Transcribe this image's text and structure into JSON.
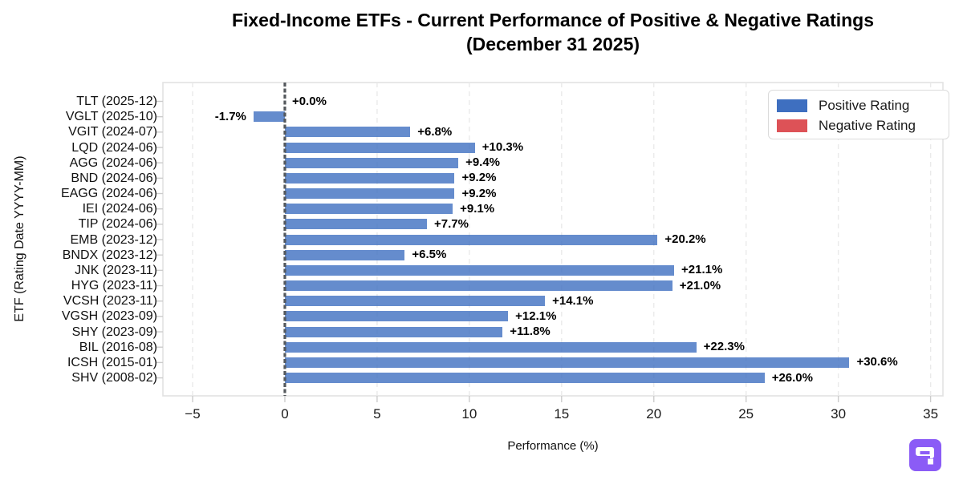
{
  "title": {
    "line1": "Fixed-Income ETFs - Current Performance of Positive & Negative Ratings",
    "line2": "(December 31 2025)"
  },
  "chart_data": {
    "type": "bar",
    "orientation": "horizontal",
    "title": "Fixed-Income ETFs - Current Performance of Positive & Negative Ratings (December 31 2025)",
    "xlabel": "Performance (%)",
    "ylabel": "ETF (Rating Date YYYY-MM)",
    "xlim": [
      -6.61,
      35.67
    ],
    "xticks": [
      -5,
      0,
      5,
      10,
      15,
      20,
      25,
      30,
      35
    ],
    "xtick_labels": [
      "−5",
      "0",
      "5",
      "10",
      "15",
      "20",
      "25",
      "30",
      "35"
    ],
    "grid": "vertical-dashed",
    "zero_line": true,
    "legend": {
      "position": "upper-right",
      "entries": [
        {
          "label": "Positive Rating",
          "color": "#3E6FC0"
        },
        {
          "label": "Negative Rating",
          "color": "#DD5257"
        }
      ]
    },
    "bar_alpha": 0.8,
    "rows": [
      {
        "label": "TLT (2025-12)",
        "value": 0.0,
        "value_label": "+0.0%",
        "rating": "positive"
      },
      {
        "label": "VGLT (2025-10)",
        "value": -1.7,
        "value_label": "-1.7%",
        "rating": "positive"
      },
      {
        "label": "VGIT (2024-07)",
        "value": 6.8,
        "value_label": "+6.8%",
        "rating": "positive"
      },
      {
        "label": "LQD (2024-06)",
        "value": 10.3,
        "value_label": "+10.3%",
        "rating": "positive"
      },
      {
        "label": "AGG (2024-06)",
        "value": 9.4,
        "value_label": "+9.4%",
        "rating": "positive"
      },
      {
        "label": "BND (2024-06)",
        "value": 9.2,
        "value_label": "+9.2%",
        "rating": "positive"
      },
      {
        "label": "EAGG (2024-06)",
        "value": 9.2,
        "value_label": "+9.2%",
        "rating": "positive"
      },
      {
        "label": "IEI (2024-06)",
        "value": 9.1,
        "value_label": "+9.1%",
        "rating": "positive"
      },
      {
        "label": "TIP (2024-06)",
        "value": 7.7,
        "value_label": "+7.7%",
        "rating": "positive"
      },
      {
        "label": "EMB (2023-12)",
        "value": 20.2,
        "value_label": "+20.2%",
        "rating": "positive"
      },
      {
        "label": "BNDX (2023-12)",
        "value": 6.5,
        "value_label": "+6.5%",
        "rating": "positive"
      },
      {
        "label": "JNK (2023-11)",
        "value": 21.1,
        "value_label": "+21.1%",
        "rating": "positive"
      },
      {
        "label": "HYG (2023-11)",
        "value": 21.0,
        "value_label": "+21.0%",
        "rating": "positive"
      },
      {
        "label": "VCSH (2023-11)",
        "value": 14.1,
        "value_label": "+14.1%",
        "rating": "positive"
      },
      {
        "label": "VGSH (2023-09)",
        "value": 12.1,
        "value_label": "+12.1%",
        "rating": "positive"
      },
      {
        "label": "SHY (2023-09)",
        "value": 11.8,
        "value_label": "+11.8%",
        "rating": "positive"
      },
      {
        "label": "BIL (2016-08)",
        "value": 22.3,
        "value_label": "+22.3%",
        "rating": "positive"
      },
      {
        "label": "ICSH (2015-01)",
        "value": 30.6,
        "value_label": "+30.6%",
        "rating": "positive"
      },
      {
        "label": "SHV (2008-02)",
        "value": 26.0,
        "value_label": "+26.0%",
        "rating": "positive"
      }
    ]
  },
  "colors": {
    "positive_bar": "#3E6FC0",
    "negative_bar": "#DD5257",
    "zero_line": "#54585C",
    "gridline": "#EAEAEA",
    "plot_border": "#E2E2E2",
    "tick_mark": "#CCCCCC",
    "watermark_bg": "#8B5CF6"
  }
}
